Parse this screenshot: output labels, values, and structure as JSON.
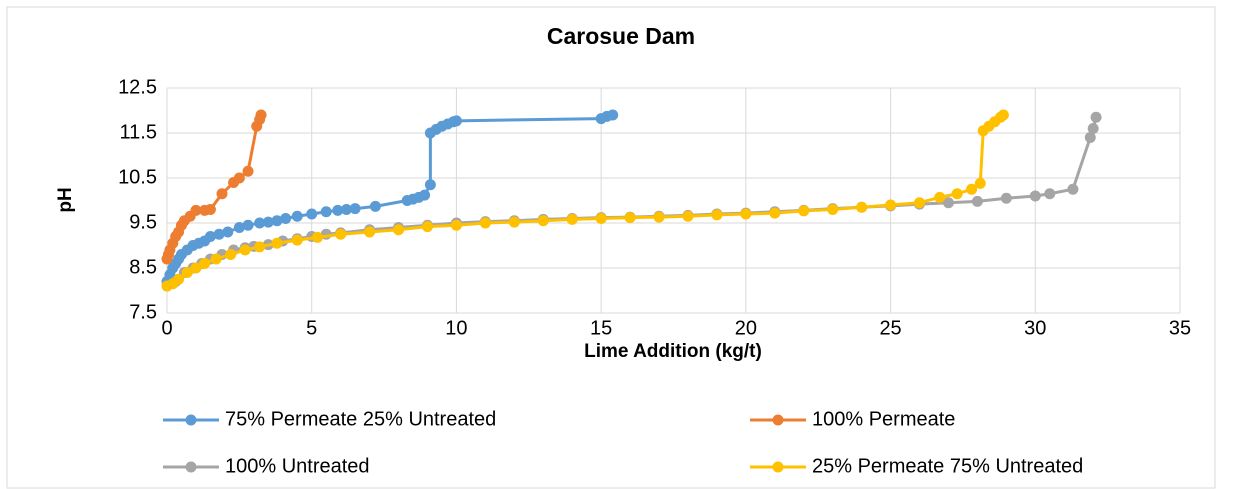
{
  "chart_data": {
    "type": "line",
    "title": "Carosue Dam",
    "x_label": "Lime Addition (kg/t)",
    "y_label": "pH",
    "xlim": [
      0,
      35
    ],
    "xticks": [
      0,
      5,
      10,
      15,
      20,
      25,
      30,
      35
    ],
    "ylim": [
      7.5,
      12.5
    ],
    "yticks": [
      7.5,
      8.5,
      9.5,
      10.5,
      11.5,
      12.5
    ],
    "grid": true,
    "markers": true,
    "legend": "bottom",
    "series": [
      {
        "name": "75% Permeate 25% Untreated",
        "color": "#5b9bd5",
        "x": [
          0,
          0.1,
          0.2,
          0.3,
          0.4,
          0.5,
          0.7,
          0.9,
          1.1,
          1.3,
          1.5,
          1.8,
          2.1,
          2.5,
          2.8,
          3.2,
          3.5,
          3.8,
          4.1,
          4.5,
          5,
          5.5,
          5.9,
          6.2,
          6.5,
          7.2,
          8.3,
          8.5,
          8.7,
          8.9,
          9.1,
          9.1,
          9.3,
          9.5,
          9.7,
          9.9,
          10,
          15,
          15.2,
          15.4
        ],
        "values": [
          8.2,
          8.35,
          8.5,
          8.6,
          8.7,
          8.8,
          8.9,
          9.0,
          9.05,
          9.1,
          9.2,
          9.25,
          9.3,
          9.4,
          9.45,
          9.5,
          9.52,
          9.55,
          9.6,
          9.65,
          9.7,
          9.75,
          9.78,
          9.8,
          9.82,
          9.87,
          10.0,
          10.03,
          10.07,
          10.12,
          10.35,
          11.5,
          11.58,
          11.65,
          11.7,
          11.75,
          11.77,
          11.82,
          11.87,
          11.9
        ]
      },
      {
        "name": "100% Permeate",
        "color": "#ed7d31",
        "x": [
          0,
          0.05,
          0.1,
          0.2,
          0.3,
          0.4,
          0.5,
          0.6,
          0.8,
          1,
          1.3,
          1.5,
          1.9,
          2.3,
          2.5,
          2.8,
          3.1,
          3.2,
          3.25
        ],
        "values": [
          8.7,
          8.8,
          8.9,
          9.05,
          9.2,
          9.3,
          9.45,
          9.55,
          9.65,
          9.78,
          9.78,
          9.8,
          10.15,
          10.4,
          10.5,
          10.65,
          11.65,
          11.8,
          11.9
        ]
      },
      {
        "name": "100% Untreated",
        "color": "#a5a5a5",
        "x": [
          0,
          0.3,
          0.6,
          0.9,
          1.2,
          1.5,
          1.9,
          2.3,
          2.7,
          3,
          3.5,
          4,
          4.5,
          5,
          5.5,
          6,
          7,
          8,
          9,
          10,
          11,
          12,
          13,
          14,
          15,
          16,
          17,
          18,
          19,
          20,
          21,
          22,
          23,
          24,
          25,
          26,
          27,
          28,
          29,
          30,
          30.5,
          31.3,
          31.9,
          32,
          32.1
        ],
        "values": [
          8.1,
          8.2,
          8.4,
          8.5,
          8.6,
          8.7,
          8.8,
          8.9,
          8.95,
          8.98,
          9.02,
          9.1,
          9.15,
          9.2,
          9.25,
          9.28,
          9.35,
          9.4,
          9.45,
          9.5,
          9.53,
          9.55,
          9.58,
          9.6,
          9.62,
          9.63,
          9.65,
          9.67,
          9.7,
          9.72,
          9.75,
          9.78,
          9.82,
          9.85,
          9.88,
          9.92,
          9.95,
          9.98,
          10.05,
          10.1,
          10.15,
          10.25,
          11.4,
          11.6,
          11.85
        ]
      },
      {
        "name": "25% Permeate 75% Untreated",
        "color": "#ffc000",
        "x": [
          0,
          0.2,
          0.4,
          0.7,
          1,
          1.3,
          1.7,
          2.2,
          2.7,
          3.2,
          3.8,
          4.5,
          5.2,
          6,
          7,
          8,
          9,
          10,
          11,
          12,
          13,
          14,
          15,
          16,
          17,
          18,
          19,
          20,
          21,
          22,
          23,
          24,
          25,
          26,
          26.7,
          27.3,
          27.8,
          28.1,
          28.2,
          28.4,
          28.6,
          28.8,
          28.9
        ],
        "values": [
          8.1,
          8.15,
          8.25,
          8.4,
          8.5,
          8.6,
          8.7,
          8.8,
          8.9,
          8.97,
          9.05,
          9.12,
          9.18,
          9.25,
          9.3,
          9.35,
          9.42,
          9.45,
          9.5,
          9.52,
          9.55,
          9.58,
          9.6,
          9.62,
          9.63,
          9.65,
          9.68,
          9.7,
          9.72,
          9.77,
          9.8,
          9.85,
          9.9,
          9.95,
          10.07,
          10.15,
          10.25,
          10.38,
          11.55,
          11.65,
          11.75,
          11.85,
          11.9
        ]
      }
    ]
  }
}
